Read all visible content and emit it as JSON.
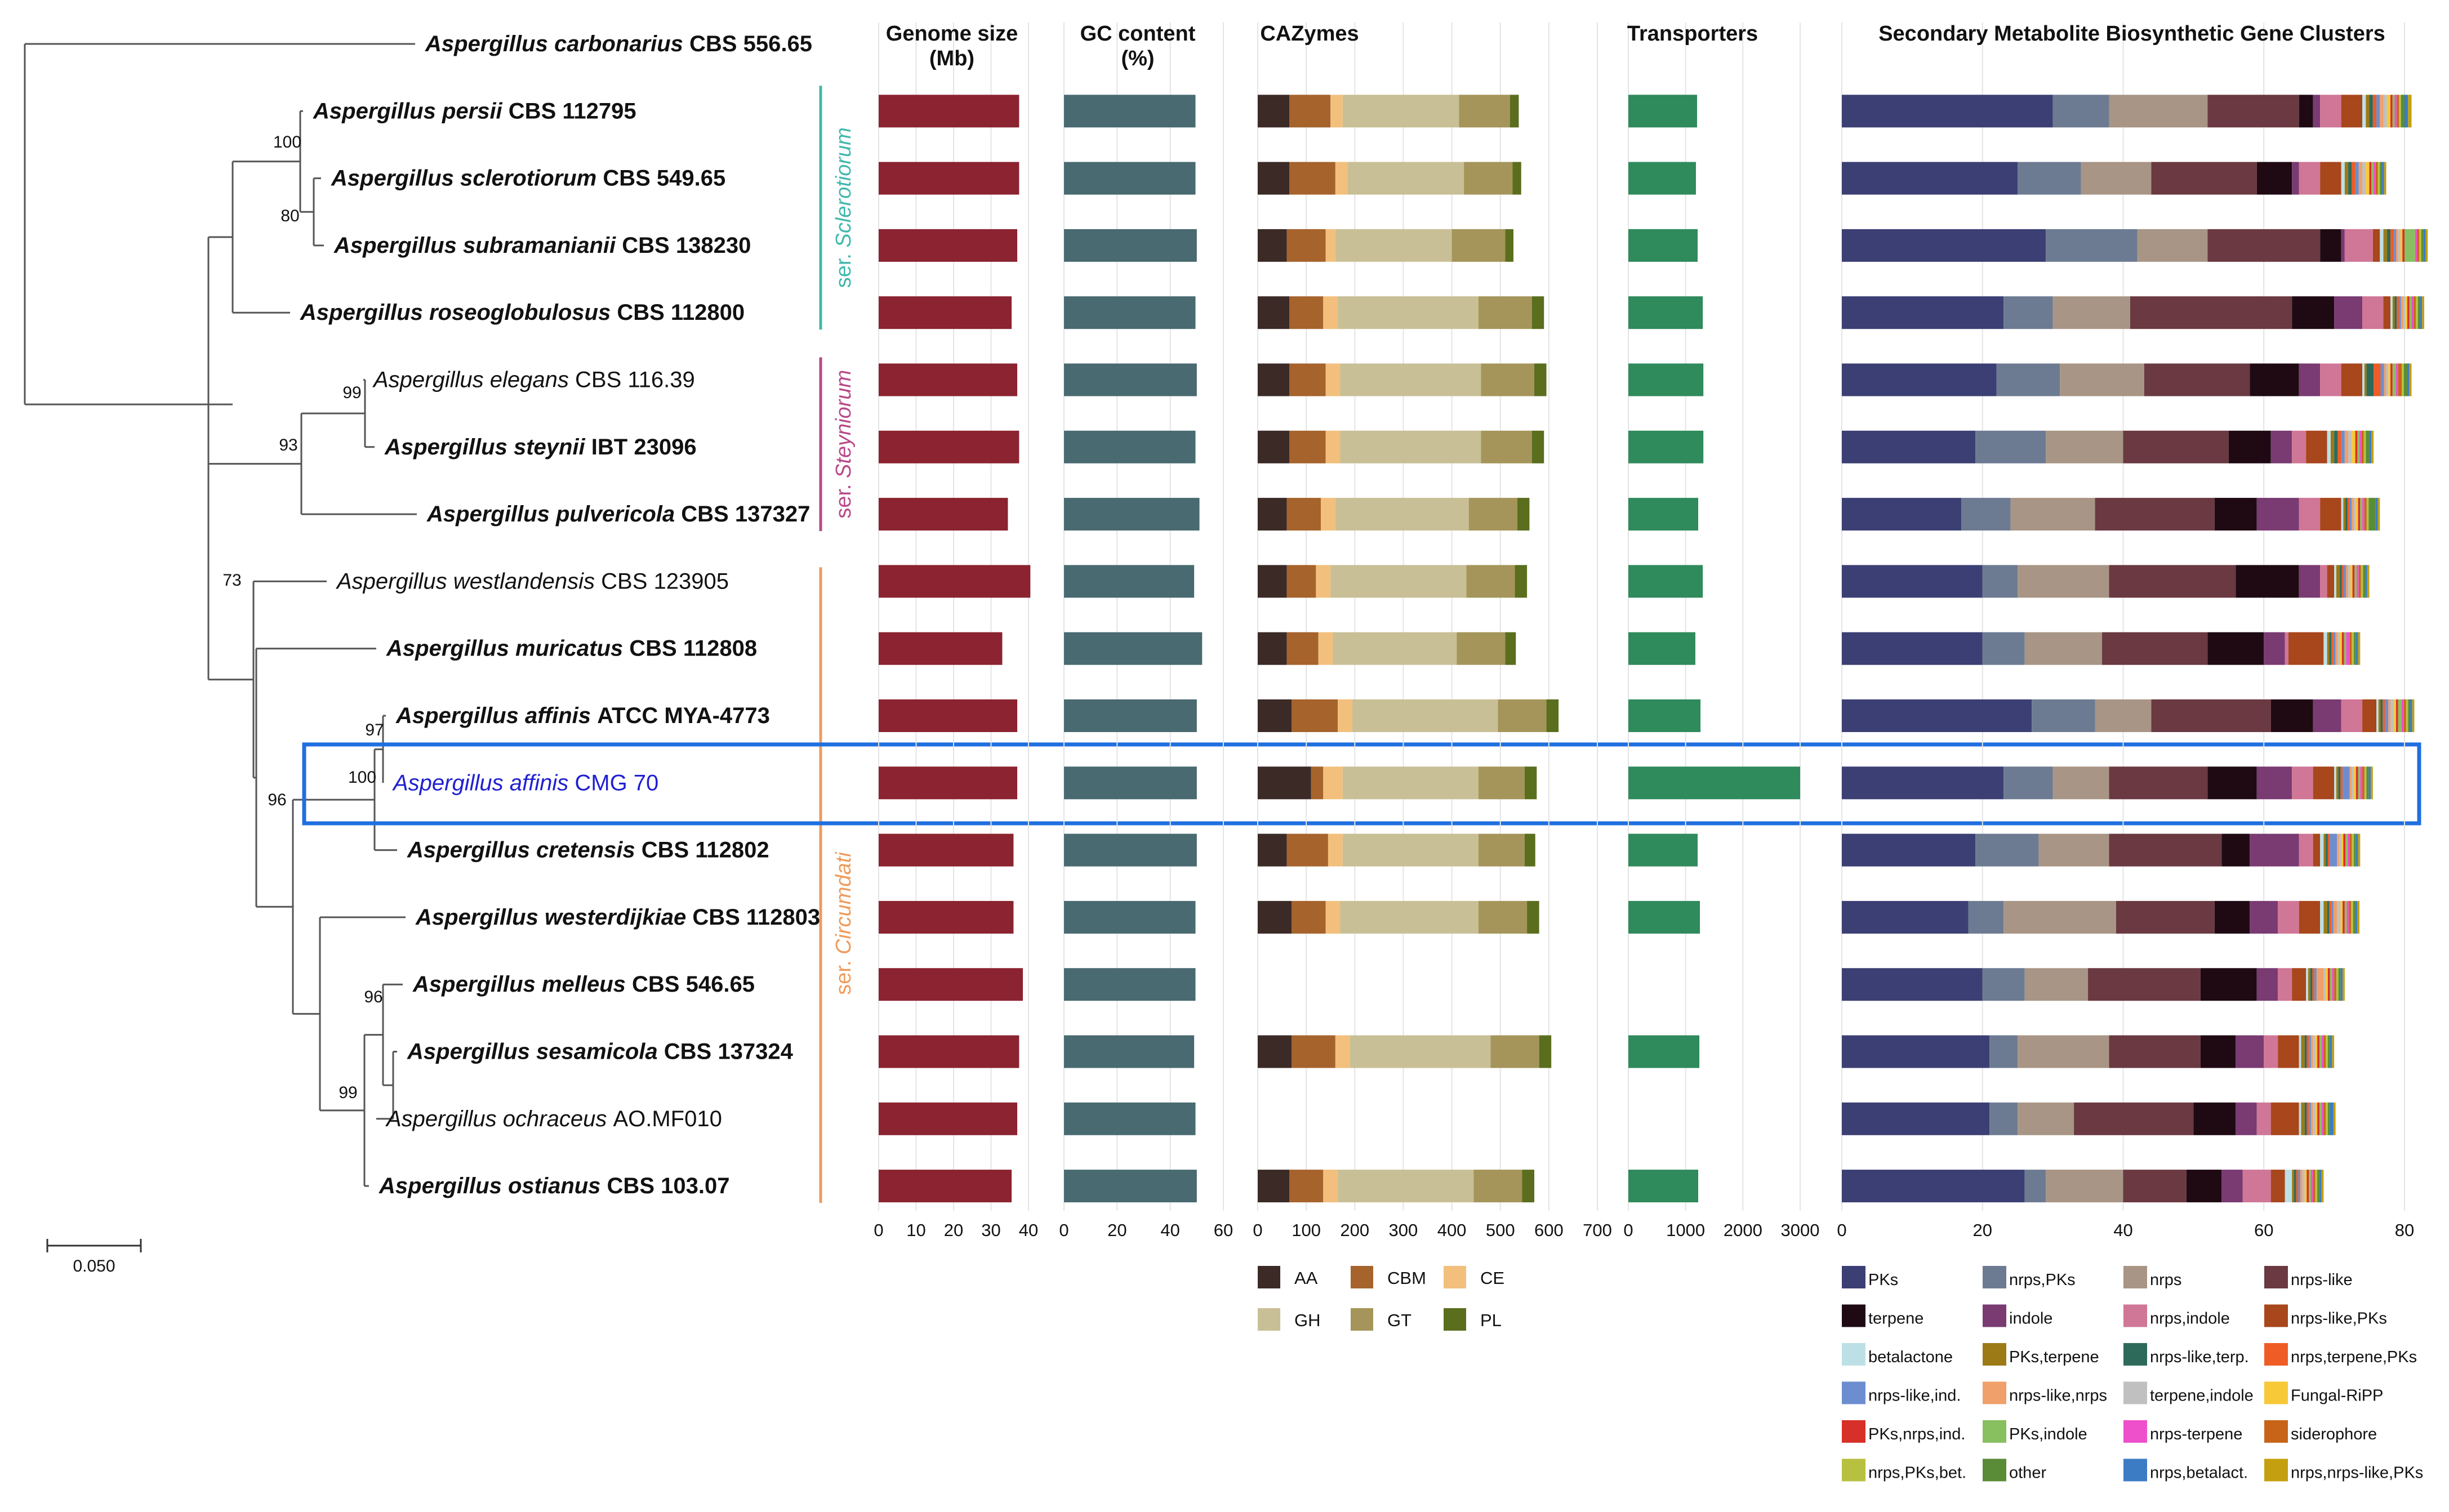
{
  "chart_data": {
    "type": "bar",
    "panel_titles": {
      "genome": [
        "Genome size",
        "(Mb)"
      ],
      "gc": [
        "GC content",
        "(%)"
      ],
      "cazy": [
        "CAZymes"
      ],
      "trans": [
        "Transporters"
      ],
      "smbgc": [
        "Secondary Metabolite Biosynthetic Gene Clusters"
      ]
    },
    "axes": {
      "genome": {
        "min": 0,
        "max": 40,
        "ticks": [
          "0",
          "10",
          "20",
          "30",
          "40"
        ]
      },
      "gc": {
        "min": 0,
        "max": 60,
        "ticks": [
          "0",
          "20",
          "40",
          "60"
        ]
      },
      "cazy": {
        "min": 0,
        "max": 700,
        "ticks": [
          "0",
          "100",
          "200",
          "300",
          "400",
          "500",
          "600",
          "700"
        ]
      },
      "trans": {
        "min": 0,
        "max": 3000,
        "ticks": [
          "0",
          "1000",
          "2000",
          "3000"
        ]
      },
      "smbgc": {
        "min": 0,
        "max": 80,
        "ticks": [
          "0",
          "20",
          "40",
          "60",
          "80"
        ]
      }
    },
    "species": [
      {
        "genus": "Aspergillus",
        "epithet": "carbonarius",
        "strain": "CBS 556.65",
        "bold": true,
        "genome": null,
        "gc": null,
        "cazy": null,
        "trans": null,
        "smbgc": null
      },
      {
        "genus": "Aspergillus",
        "epithet": "persii",
        "strain": "CBS 112795",
        "bold": true,
        "genome": 37.5,
        "gc": 49.5,
        "cazy": [
          65,
          85,
          25,
          240,
          105,
          18
        ],
        "trans": 1200,
        "smbgc": [
          30,
          8,
          14,
          13,
          2,
          1,
          3,
          3,
          0.5,
          0.5,
          0.5,
          0.5,
          0.5,
          0.5,
          0.5,
          0.5,
          0.3,
          0.3,
          0.3,
          0.3,
          0.3,
          0.5,
          0.5,
          0.5
        ]
      },
      {
        "genus": "Aspergillus",
        "epithet": "sclerotiorum",
        "strain": "CBS 549.65",
        "bold": true,
        "genome": 37.5,
        "gc": 49.5,
        "cazy": [
          65,
          95,
          25,
          240,
          100,
          18
        ],
        "trans": 1180,
        "smbgc": [
          25,
          9,
          10,
          15,
          5,
          1,
          3,
          3,
          0.5,
          0.5,
          0.5,
          0.5,
          0.5,
          0.5,
          0.5,
          0.5,
          0.3,
          0.3,
          0.3,
          0.3,
          0.3,
          0.3,
          0.3,
          0.3
        ]
      },
      {
        "genus": "Aspergillus",
        "epithet": "subramanianii",
        "strain": "CBS 138230",
        "bold": true,
        "genome": 37,
        "gc": 50,
        "cazy": [
          60,
          80,
          20,
          240,
          110,
          17
        ],
        "trans": 1210,
        "smbgc": [
          29,
          13,
          10,
          16,
          3,
          0.5,
          4,
          1,
          0.5,
          0.5,
          0.5,
          0.5,
          0.3,
          0.3,
          0.3,
          0.3,
          0.3,
          1.5,
          0.3,
          0.3,
          0.3,
          0.3,
          0.3,
          0.3
        ]
      },
      {
        "genus": "Aspergillus",
        "epithet": "roseoglobulosus",
        "strain": "CBS 112800",
        "bold": true,
        "genome": 35.5,
        "gc": 49.5,
        "cazy": [
          65,
          70,
          30,
          290,
          110,
          25
        ],
        "trans": 1300,
        "smbgc": [
          23,
          7,
          11,
          23,
          6,
          4,
          3,
          1,
          0.3,
          0.3,
          0.3,
          0.3,
          0.3,
          0.3,
          0.3,
          0.3,
          0.3,
          0.3,
          0.3,
          0.3,
          0.3,
          0.3,
          0.3,
          0.3
        ]
      },
      {
        "genus": "Aspergillus",
        "epithet": "elegans",
        "strain": "CBS 116.39",
        "bold": false,
        "genome": 37,
        "gc": 50,
        "cazy": [
          65,
          75,
          30,
          290,
          110,
          25
        ],
        "trans": 1310,
        "smbgc": [
          22,
          9,
          12,
          15,
          7,
          3,
          3,
          3,
          0.3,
          0.3,
          1,
          1,
          0.5,
          0.3,
          0.3,
          0.3,
          0.3,
          0.5,
          0.3,
          0.5,
          0.3,
          0.5,
          0.3,
          0.3
        ]
      },
      {
        "genus": "Aspergillus",
        "epithet": "steynii",
        "strain": "IBT 23096",
        "bold": true,
        "genome": 37.5,
        "gc": 49.5,
        "cazy": [
          65,
          75,
          30,
          290,
          105,
          25
        ],
        "trans": 1310,
        "smbgc": [
          19,
          10,
          11,
          15,
          6,
          3,
          2,
          3,
          0.5,
          0.5,
          0.5,
          0.5,
          0.5,
          0.5,
          0.5,
          0.5,
          0.3,
          0.3,
          0.3,
          0.3,
          0.3,
          0.5,
          0.3,
          0.3
        ]
      },
      {
        "genus": "Aspergillus",
        "epithet": "pulvericola",
        "strain": "CBS 137327",
        "bold": true,
        "genome": 34.5,
        "gc": 51,
        "cazy": [
          60,
          70,
          30,
          275,
          100,
          25
        ],
        "trans": 1220,
        "smbgc": [
          17,
          7,
          12,
          17,
          6,
          6,
          3,
          3,
          0.3,
          0.3,
          0.3,
          0.3,
          0.3,
          0.3,
          0.3,
          0.3,
          0.3,
          0.3,
          0.3,
          0.3,
          0.3,
          1,
          0.3,
          0.3
        ]
      },
      {
        "genus": "Aspergillus",
        "epithet": "westlandensis",
        "strain": "CBS 123905",
        "bold": false,
        "genome": 40.5,
        "gc": 49,
        "cazy": [
          60,
          60,
          30,
          280,
          100,
          25
        ],
        "trans": 1300,
        "smbgc": [
          20,
          5,
          13,
          18,
          9,
          3,
          1,
          1,
          0.3,
          0.5,
          0.3,
          0.3,
          0.3,
          0.3,
          0.3,
          0.3,
          0.3,
          0.3,
          0.3,
          0.3,
          0.3,
          0.3,
          0.3,
          0.3
        ]
      },
      {
        "genus": "Aspergillus",
        "epithet": "muricatus",
        "strain": "CBS 112808",
        "bold": true,
        "genome": 33,
        "gc": 52,
        "cazy": [
          60,
          65,
          30,
          255,
          100,
          22
        ],
        "trans": 1170,
        "smbgc": [
          20,
          6,
          11,
          15,
          8,
          3,
          0.5,
          5,
          0.5,
          0.3,
          0.3,
          0.3,
          0.3,
          0.3,
          0.3,
          0.3,
          0.3,
          0.3,
          0.5,
          0.3,
          0.3,
          0.3,
          0.3,
          0.3
        ]
      },
      {
        "genus": "Aspergillus",
        "epithet": "affinis",
        "strain": "ATCC MYA-4773",
        "bold": true,
        "genome": 37,
        "gc": 50,
        "cazy": [
          70,
          95,
          30,
          300,
          100,
          25
        ],
        "trans": 1260,
        "smbgc": [
          27,
          9,
          8,
          17,
          6,
          4,
          3,
          2,
          0.3,
          0.3,
          0.3,
          0.3,
          0.5,
          0.3,
          0.5,
          0.3,
          0.3,
          0.5,
          0.3,
          0.3,
          0.3,
          0.3,
          0.3,
          0.3
        ]
      },
      {
        "genus": "Aspergillus",
        "epithet": "affinis",
        "strain": "CMG 70",
        "bold": false,
        "highlight": true,
        "genome": 37,
        "gc": 50,
        "cazy": [
          110,
          25,
          40,
          280,
          95,
          25
        ],
        "trans": 3000,
        "smbgc": [
          23,
          7,
          8,
          14,
          7,
          5,
          3,
          3,
          0.3,
          0.3,
          0.3,
          0.3,
          1,
          0.3,
          0.3,
          0.3,
          0.3,
          0.3,
          0.3,
          0.3,
          0.3,
          0.3,
          0.3,
          0.3
        ]
      },
      {
        "genus": "Aspergillus",
        "epithet": "cretensis",
        "strain": "CBS 112802",
        "bold": true,
        "genome": 36,
        "gc": 50,
        "cazy": [
          60,
          85,
          30,
          280,
          95,
          22
        ],
        "trans": 1210,
        "smbgc": [
          19,
          9,
          10,
          16,
          4,
          7,
          2,
          1,
          0.5,
          0.3,
          0.3,
          0.3,
          1,
          0.3,
          0.3,
          0.3,
          0.3,
          0.3,
          0.3,
          0.3,
          0.3,
          0.3,
          0.3,
          0.3
        ]
      },
      {
        "genus": "Aspergillus",
        "epithet": "westerdijkiae",
        "strain": "CBS 112803",
        "bold": true,
        "genome": 36,
        "gc": 49.5,
        "cazy": [
          70,
          70,
          30,
          285,
          100,
          25
        ],
        "trans": 1250,
        "smbgc": [
          18,
          5,
          16,
          14,
          5,
          4,
          3,
          3,
          0.5,
          0.5,
          0.3,
          0.3,
          0.3,
          0.5,
          0.5,
          0.3,
          0.3,
          0.3,
          0.3,
          0.3,
          0.3,
          0.3,
          0.3,
          0.3
        ]
      },
      {
        "genus": "Aspergillus",
        "epithet": "melleus",
        "strain": "CBS 546.65",
        "bold": true,
        "genome": 38.5,
        "gc": 49.5,
        "cazy": null,
        "trans": null,
        "smbgc": [
          20,
          6,
          9,
          16,
          8,
          3,
          2,
          2,
          0.3,
          0.3,
          0.3,
          0.3,
          0.3,
          1,
          0.3,
          0.3,
          0.3,
          0.3,
          0.3,
          0.3,
          0.3,
          0.3,
          0.3,
          0.3
        ]
      },
      {
        "genus": "Aspergillus",
        "epithet": "sesamicola",
        "strain": "CBS 137324",
        "bold": true,
        "genome": 37.5,
        "gc": 49,
        "cazy": [
          70,
          90,
          30,
          290,
          100,
          25
        ],
        "trans": 1240,
        "smbgc": [
          21,
          4,
          13,
          13,
          5,
          4,
          2,
          3,
          0.3,
          0.5,
          0.3,
          0.3,
          0.3,
          0.3,
          0.3,
          0.3,
          0.3,
          0.3,
          0.3,
          0.3,
          0.3,
          0.3,
          0.3,
          0.3
        ]
      },
      {
        "genus": "Aspergillus",
        "epithet": "ochraceus",
        "strain": "AO.MF010",
        "bold": false,
        "genome": 37,
        "gc": 49.5,
        "cazy": null,
        "trans": null,
        "smbgc": [
          21,
          4,
          8,
          17,
          6,
          3,
          2,
          4,
          0.3,
          0.5,
          0.3,
          0.3,
          0.3,
          0.3,
          0.3,
          0.3,
          0.3,
          0.3,
          0.3,
          0.3,
          0.3,
          0.3,
          0.5,
          0.3
        ]
      },
      {
        "genus": "Aspergillus",
        "epithet": "ostianus",
        "strain": "CBS 103.07",
        "bold": true,
        "genome": 35.5,
        "gc": 50,
        "cazy": [
          65,
          70,
          30,
          280,
          100,
          25
        ],
        "trans": 1220,
        "smbgc": [
          26,
          3,
          11,
          9,
          5,
          3,
          4,
          2,
          1,
          0.3,
          0.3,
          0.3,
          0.3,
          0.3,
          0.3,
          0.3,
          0.3,
          0.3,
          0.3,
          0.3,
          0.3,
          0.3,
          0.3,
          0.3
        ]
      }
    ],
    "bootstrap": [
      "100",
      "80",
      "99",
      "93",
      "73",
      "97",
      "100",
      "96",
      "96",
      "99"
    ],
    "clades": [
      "ser. Sclerotiorum",
      "ser. Steyniorum",
      "ser. Circumdati"
    ],
    "scale_label": "0.050",
    "cazy_legend": [
      "AA",
      "CBM",
      "CE",
      "GH",
      "GT",
      "PL"
    ],
    "smbgc_legend": [
      "PKs",
      "nrps,PKs",
      "nrps",
      "nrps-like",
      "terpene",
      "indole",
      "nrps,indole",
      "nrps-like,PKs",
      "betalactone",
      "PKs,terpene",
      "nrps-like,terp.",
      "nrps,terpene,PKs",
      "nrps-like,ind.",
      "nrps-like,nrps",
      "terpene,indole",
      "Fungal-RiPP",
      "PKs,nrps,ind.",
      "PKs,indole",
      "nrps-terpene",
      "siderophore",
      "nrps,PKs,bet.",
      "other",
      "nrps,betalact.",
      "nrps,nrps-like,PKs"
    ]
  },
  "colors": {
    "genome": "#8b2330",
    "gc": "#486a70",
    "trans": "#2f8a5c",
    "cazy": [
      "#3b2a26",
      "#a6632c",
      "#f2c07c",
      "#c9bf96",
      "#a5955a",
      "#5a6e1e"
    ],
    "smbgc": [
      "#3c3f73",
      "#6c7b92",
      "#a89585",
      "#6a3941",
      "#1f0a14",
      "#7a3a72",
      "#d07696",
      "#a8461c",
      "#bde0e6",
      "#9c7a16",
      "#2d6a5a",
      "#ef5c26",
      "#6c8ed0",
      "#f0a06a",
      "#c0c0c0",
      "#f7c838",
      "#d63028",
      "#88c060",
      "#ee50cc",
      "#c86418",
      "#b8c040",
      "#5a8c38",
      "#3c7cc4",
      "#c4a010"
    ],
    "tree": "#555555",
    "highlight_box": "#1f6fe0",
    "highlight_text": "#2020d0",
    "clades": [
      "#3fb8ab",
      "#b84887",
      "#ef9a5a"
    ]
  }
}
